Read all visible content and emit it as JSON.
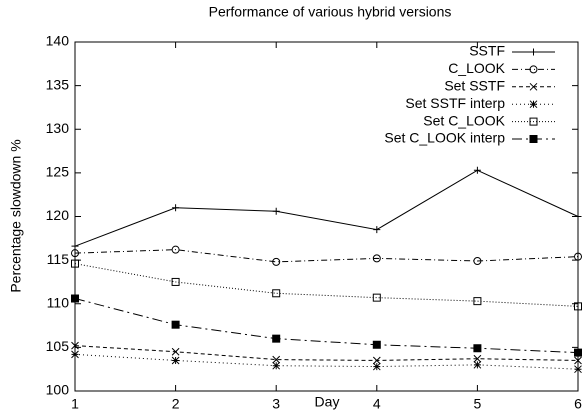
{
  "chart_data": {
    "type": "line",
    "title": "Performance of various hybrid versions",
    "x_label": "Day",
    "y_label": "Percentage slowdown %",
    "x": [
      1,
      2,
      3,
      4,
      5,
      6
    ],
    "xlim": [
      1,
      6
    ],
    "xticks": [
      1,
      2,
      3,
      4,
      5,
      6
    ],
    "ylim": [
      100,
      140
    ],
    "yticks": [
      100,
      105,
      110,
      115,
      120,
      125,
      130,
      135,
      140
    ],
    "legend": "top-right",
    "grid": false,
    "series": [
      {
        "name": "SSTF",
        "color": "#000000",
        "dash": "solid",
        "marker": "plus",
        "values": [
          116.6,
          121.0,
          120.6,
          118.5,
          125.3,
          120.0
        ]
      },
      {
        "name": "C_LOOK",
        "color": "#000000",
        "dash": "dash-dot",
        "marker": "circle",
        "values": [
          115.8,
          116.2,
          114.8,
          115.2,
          114.9,
          115.4
        ]
      },
      {
        "name": "Set SSTF",
        "color": "#000000",
        "dash": "dashed",
        "marker": "cross",
        "values": [
          105.2,
          104.5,
          103.6,
          103.5,
          103.7,
          103.5
        ]
      },
      {
        "name": "Set SSTF interp",
        "color": "#000000",
        "dash": "dotted",
        "marker": "star",
        "values": [
          104.2,
          103.5,
          102.9,
          102.8,
          103.0,
          102.5
        ]
      },
      {
        "name": "Set C_LOOK",
        "color": "#000000",
        "dash": "fine-dotted",
        "marker": "open-square",
        "values": [
          114.6,
          112.5,
          111.2,
          110.7,
          110.3,
          109.7
        ]
      },
      {
        "name": "Set C_LOOK interp",
        "color": "#000000",
        "dash": "long-dash-dot",
        "marker": "filled-square",
        "values": [
          110.6,
          107.6,
          106.0,
          105.3,
          104.9,
          104.4
        ]
      }
    ]
  }
}
